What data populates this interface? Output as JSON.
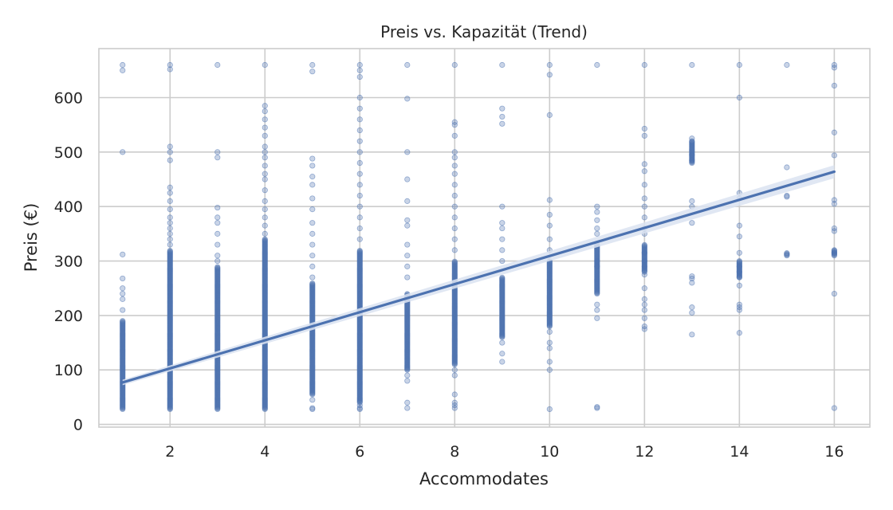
{
  "chart_data": {
    "type": "scatter",
    "title": "Preis vs. Kapazität (Trend)",
    "xlabel": "Accommodates",
    "ylabel": "Preis (€)",
    "xlim": [
      0.5,
      16.75
    ],
    "ylim": [
      -5,
      690
    ],
    "x_ticks": [
      2,
      4,
      6,
      8,
      10,
      12,
      14,
      16
    ],
    "y_ticks": [
      0,
      100,
      200,
      300,
      400,
      500,
      600
    ],
    "grid": true,
    "colors": {
      "points": "#4c72b0",
      "trend": "#4c72b0",
      "band": "#dbe3f1",
      "grid": "#cccccc"
    },
    "series": [
      {
        "kind": "points",
        "columns": [
          {
            "x": 1,
            "dense": [
              28,
              190
            ],
            "y": [
              650,
              660,
              500,
              312,
              268,
              250,
              240,
              230,
              210
            ]
          },
          {
            "x": 2,
            "dense": [
              28,
              320
            ],
            "y": [
              660,
              652,
              510,
              500,
              485,
              435,
              425,
              410,
              395,
              380,
              370,
              360,
              350,
              340,
              330
            ]
          },
          {
            "x": 3,
            "dense": [
              28,
              290
            ],
            "y": [
              660,
              500,
              490,
              398,
              380,
              370,
              350,
              330,
              310,
              300
            ]
          },
          {
            "x": 4,
            "dense": [
              28,
              340
            ],
            "y": [
              660,
              585,
              575,
              560,
              545,
              530,
              510,
              500,
              490,
              475,
              460,
              450,
              430,
              410,
              395,
              380,
              365,
              350
            ]
          },
          {
            "x": 5,
            "dense": [
              55,
              260
            ],
            "y": [
              660,
              648,
              488,
              475,
              455,
              440,
              415,
              395,
              370,
              350,
              330,
              310,
              290,
              270,
              45,
              30,
              28
            ]
          },
          {
            "x": 6,
            "dense": [
              40,
              320
            ],
            "y": [
              660,
              650,
              638,
              600,
              580,
              560,
              540,
              520,
              500,
              480,
              460,
              440,
              420,
              400,
              380,
              360,
              340,
              35,
              30,
              28
            ]
          },
          {
            "x": 7,
            "dense": [
              100,
              240
            ],
            "y": [
              660,
              598,
              500,
              450,
              410,
              375,
              365,
              330,
              310,
              290,
              270,
              90,
              80,
              40,
              30
            ]
          },
          {
            "x": 8,
            "dense": [
              110,
              300
            ],
            "y": [
              660,
              555,
              550,
              530,
              500,
              490,
              475,
              460,
              440,
              420,
              400,
              380,
              360,
              340,
              320,
              100,
              90,
              55,
              40,
              35,
              30
            ]
          },
          {
            "x": 9,
            "dense": [
              160,
              270
            ],
            "y": [
              660,
              580,
              565,
              552,
              400,
              370,
              360,
              340,
              320,
              300,
              150,
              130,
              115
            ]
          },
          {
            "x": 10,
            "dense": [
              180,
              300
            ],
            "y": [
              660,
              642,
              568,
              412,
              385,
              365,
              340,
              320,
              170,
              150,
              140,
              115,
              100,
              28
            ]
          },
          {
            "x": 11,
            "dense": [
              240,
              330
            ],
            "y": [
              660,
              400,
              390,
              375,
              360,
              350,
              300,
              290,
              220,
              210,
              195,
              32,
              30
            ]
          },
          {
            "x": 12,
            "dense": [
              280,
              330
            ],
            "y": [
              660,
              543,
              530,
              478,
              465,
              440,
              415,
              400,
              380,
              360,
              350,
              315,
              300,
              290,
              275,
              250,
              230,
              220,
              210,
              195,
              180,
              175
            ]
          },
          {
            "x": 13,
            "dense": [
              480,
              520
            ],
            "y": [
              660,
              525,
              520,
              495,
              485,
              410,
              400,
              370,
              272,
              268,
              260,
              215,
              205,
              165
            ]
          },
          {
            "x": 14,
            "dense": [
              270,
              300
            ],
            "y": [
              660,
              600,
              425,
              415,
              365,
              345,
              315,
              290,
              280,
              270,
              255,
              220,
              215,
              210,
              168
            ]
          },
          {
            "x": 15,
            "dense": [
              310,
              315
            ],
            "y": [
              660,
              472,
              420,
              418
            ]
          },
          {
            "x": 16,
            "dense": [
              310,
              320
            ],
            "y": [
              660,
              655,
              622,
              536,
              494,
              412,
              405,
              360,
              355,
              320,
              315,
              240,
              30
            ]
          }
        ]
      },
      {
        "kind": "trend",
        "x": [
          1,
          16
        ],
        "y": [
          77,
          464
        ],
        "band_lower": [
          72,
          452
        ],
        "band_upper": [
          82,
          476
        ]
      }
    ]
  }
}
